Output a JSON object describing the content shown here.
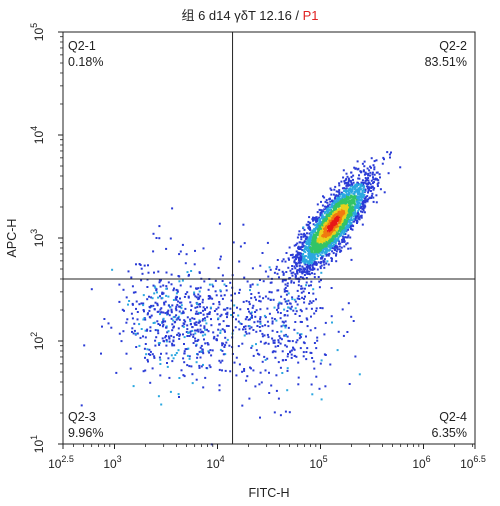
{
  "title": {
    "main": "组 6 d14 γδT 12.16",
    "separator": " / ",
    "gate": "P1",
    "gate_color": "#e02020"
  },
  "chart_data": {
    "type": "scatter",
    "plot_kind": "flow-cytometry-density-dot-plot",
    "xlabel": "FITC-H",
    "ylabel": "APC-H",
    "x_scale": "log10",
    "y_scale": "log10",
    "xlim": [
      316.2,
      3162278
    ],
    "ylim": [
      10,
      100000
    ],
    "x_ticks": [
      {
        "base": "10",
        "exp": "2.5",
        "value": 316.2
      },
      {
        "base": "10",
        "exp": "3",
        "value": 1000
      },
      {
        "base": "10",
        "exp": "4",
        "value": 10000
      },
      {
        "base": "10",
        "exp": "5",
        "value": 100000
      },
      {
        "base": "10",
        "exp": "6",
        "value": 1000000
      },
      {
        "base": "10",
        "exp": "6.5",
        "value": 3162278
      }
    ],
    "y_ticks": [
      {
        "base": "10",
        "exp": "1",
        "value": 10
      },
      {
        "base": "10",
        "exp": "2",
        "value": 100
      },
      {
        "base": "10",
        "exp": "3",
        "value": 1000
      },
      {
        "base": "10",
        "exp": "4",
        "value": 10000
      },
      {
        "base": "10",
        "exp": "5",
        "value": 100000
      }
    ],
    "gate_x": 14000,
    "gate_y": 400,
    "quadrants": [
      {
        "name": "Q2-1",
        "percent": "0.18%",
        "position": "top-left"
      },
      {
        "name": "Q2-2",
        "percent": "83.51%",
        "position": "top-right"
      },
      {
        "name": "Q2-3",
        "percent": "9.96%",
        "position": "bottom-left"
      },
      {
        "name": "Q2-4",
        "percent": "6.35%",
        "position": "bottom-right"
      }
    ],
    "populations": [
      {
        "center_x": 130000,
        "center_y": 1400,
        "spread": "dense, elongated diagonal",
        "share": 0.8351
      },
      {
        "center_x": 4500,
        "center_y": 160,
        "spread": "sparse, broad",
        "share": 0.0996
      },
      {
        "center_x": 40000,
        "center_y": 150,
        "spread": "sparse",
        "share": 0.0635
      },
      {
        "center_x": 5000,
        "center_y": 600,
        "spread": "very sparse",
        "share": 0.0018
      }
    ],
    "density_colors": [
      "#2a3bd6",
      "#2ba8e0",
      "#33c466",
      "#e8d21c",
      "#f07a10",
      "#e81818"
    ],
    "grid": false,
    "legend": "none"
  }
}
